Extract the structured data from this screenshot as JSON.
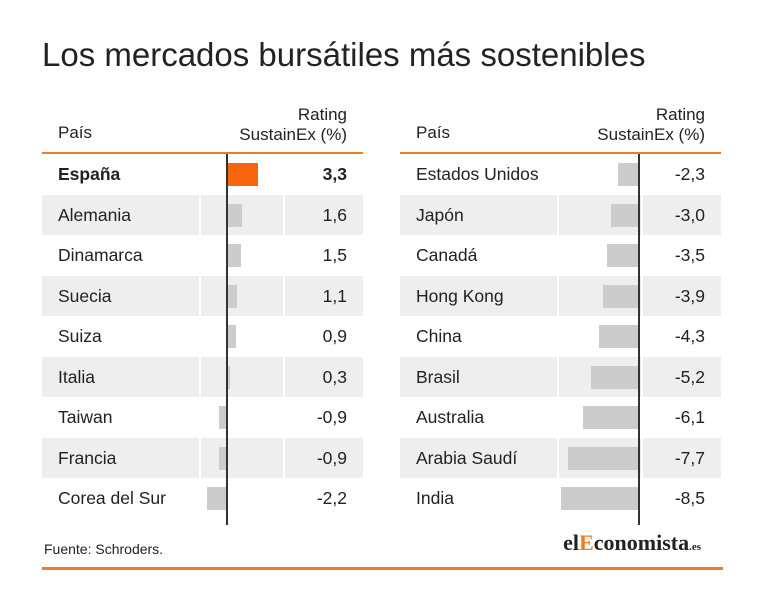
{
  "title": "Los mercados bursátiles más sostenibles",
  "source": "Fuente: Schroders.",
  "logo": {
    "prefix": "el",
    "accent": "E",
    "rest": "conomista",
    "suffix": ".es"
  },
  "colors": {
    "accent": "#f07c1f",
    "highlight_bar": "#f7650e",
    "bar": "#cccccc",
    "row_shade": "#eeeeee"
  },
  "chart_data": [
    {
      "type": "bar",
      "orientation": "horizontal",
      "column_headers": {
        "country": "País",
        "rating": "Rating\nSustainEx (%)"
      },
      "categories": [
        "España",
        "Alemania",
        "Dinamarca",
        "Suecia",
        "Suiza",
        "Italia",
        "Taiwan",
        "Francia",
        "Corea del Sur"
      ],
      "values": [
        3.3,
        1.6,
        1.5,
        1.1,
        0.9,
        0.3,
        -0.9,
        -0.9,
        -2.2
      ],
      "labels": [
        "3,3",
        "1,6",
        "1,5",
        "1,1",
        "0,9",
        "0,3",
        "-0,9",
        "-0,9",
        "-2,2"
      ],
      "highlight_index": 0,
      "xlim": [
        -2.2,
        3.3
      ]
    },
    {
      "type": "bar",
      "orientation": "horizontal",
      "column_headers": {
        "country": "País",
        "rating": "Rating\nSustainEx (%)"
      },
      "categories": [
        "Estados Unidos",
        "Japón",
        "Canadá",
        "Hong Kong",
        "China",
        "Brasil",
        "Australia",
        "Arabia Saudí",
        "India"
      ],
      "values": [
        -2.3,
        -3.0,
        -3.5,
        -3.9,
        -4.3,
        -5.2,
        -6.1,
        -7.7,
        -8.5
      ],
      "labels": [
        "-2,3",
        "-3,0",
        "-3,5",
        "-3,9",
        "-4,3",
        "-5,2",
        "-6,1",
        "-7,7",
        "-8,5"
      ],
      "highlight_index": null,
      "xlim": [
        -8.5,
        0
      ]
    }
  ]
}
